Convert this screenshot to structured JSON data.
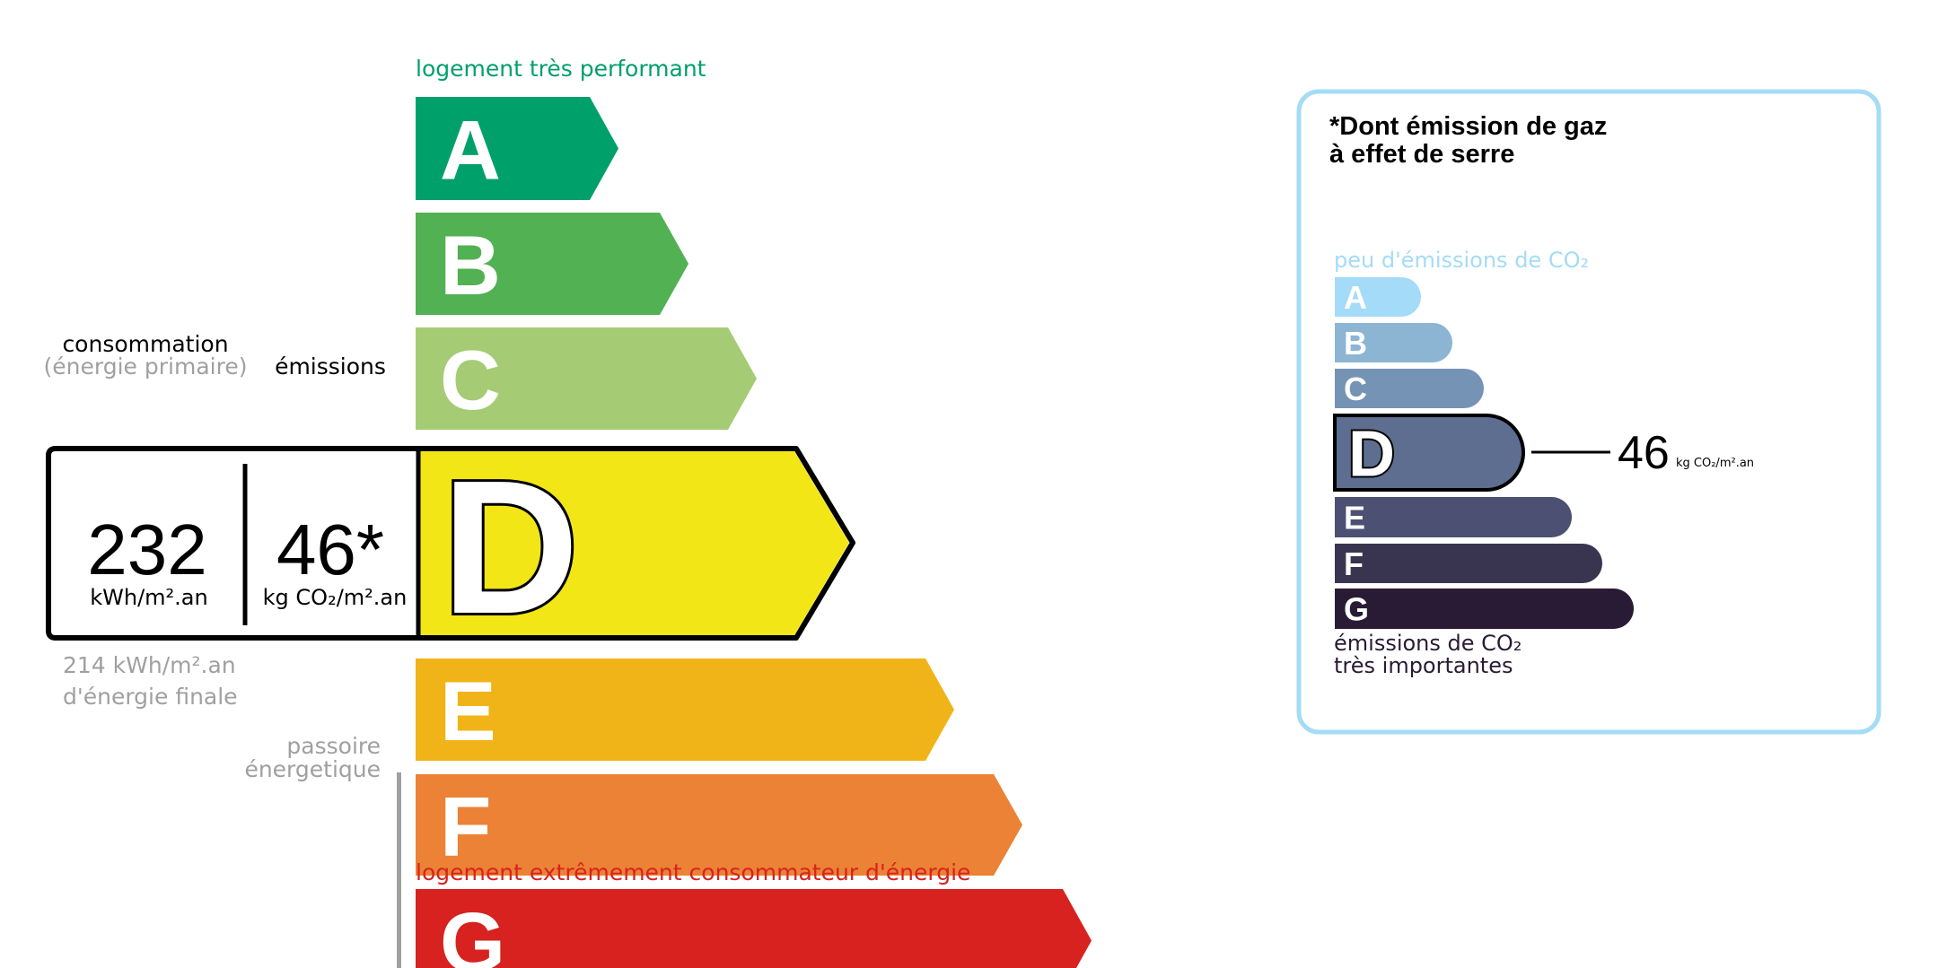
{
  "energy_label": {
    "top_caption": "logement très performant",
    "bottom_caption": "logement extrêmement consommateur d'énergie",
    "classes": [
      {
        "letter": "A",
        "color": "#00a06b"
      },
      {
        "letter": "B",
        "color": "#52b153"
      },
      {
        "letter": "C",
        "color": "#a5cc74"
      },
      {
        "letter": "D",
        "color": "#f2e617"
      },
      {
        "letter": "E",
        "color": "#f0b418"
      },
      {
        "letter": "F",
        "color": "#eb8235"
      },
      {
        "letter": "G",
        "color": "#d7221f"
      }
    ],
    "current_class": "D",
    "consumption_header": "consommation",
    "consumption_subheader": "(énergie primaire)",
    "emissions_header": "émissions",
    "consumption_value": "232",
    "consumption_unit": "kWh/m².an",
    "emissions_value": "46*",
    "emissions_unit": "kg CO₂/m².an",
    "final_energy_line1": "214 kWh/m².an",
    "final_energy_line2": "d'énergie finale",
    "passoire_line1": "passoire",
    "passoire_line2": "énergetique",
    "caption_top_color": "#00a06b",
    "caption_bottom_color": "#d7221f"
  },
  "ges_panel": {
    "title_line1": "*Dont émission de gaz",
    "title_line2": "à effet de serre",
    "top_caption": "peu d'émissions de CO₂",
    "bottom_caption_line1": "émissions de CO₂",
    "bottom_caption_line2": "très importantes",
    "classes": [
      {
        "letter": "A",
        "color": "#a4dbf8"
      },
      {
        "letter": "B",
        "color": "#8cb4d3"
      },
      {
        "letter": "C",
        "color": "#7593b5"
      },
      {
        "letter": "D",
        "color": "#5e6e90"
      },
      {
        "letter": "E",
        "color": "#4c5072"
      },
      {
        "letter": "F",
        "color": "#393551"
      },
      {
        "letter": "G",
        "color": "#291b35"
      }
    ],
    "current_class": "D",
    "value": "46",
    "unit": "kg CO₂/m².an",
    "border_color": "#a4dcf6"
  }
}
